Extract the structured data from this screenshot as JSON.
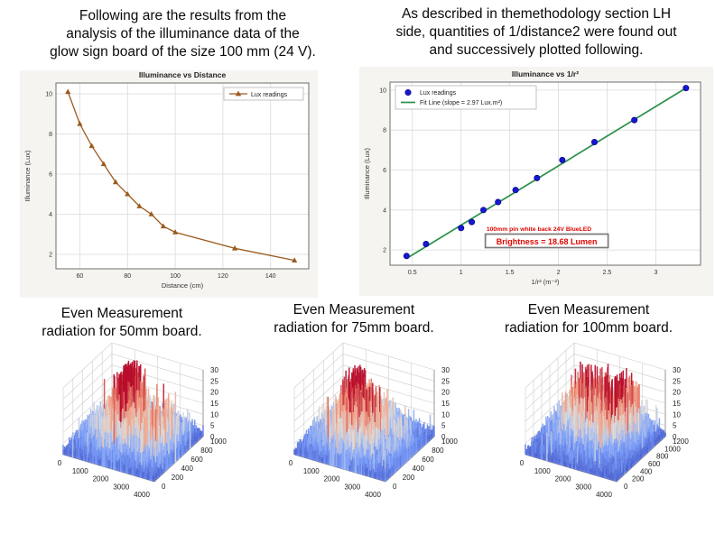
{
  "page": {
    "background": "#ffffff"
  },
  "captions": {
    "top_left": [
      "Following are the results from the",
      "analysis of the illuminance data of the",
      "glow sign board of the size 100 mm (24 V)."
    ],
    "top_right": [
      "As described in themethodology section LH",
      "side, quantities of 1/distance2 were found out",
      "and successively plotted following."
    ],
    "bottom_left": [
      "Even Measurement",
      "radiation for 50mm board."
    ],
    "bottom_middle": [
      "Even Measurement",
      "radiation for 75mm board."
    ],
    "bottom_right": [
      "Even Measurement",
      "radiation for 100mm board."
    ]
  },
  "chart_data": [
    {
      "id": "illuminance_vs_distance",
      "type": "line",
      "title": "Illuminance vs Distance",
      "xlabel": "Distance (cm)",
      "ylabel": "Illuminance (Lux)",
      "x": [
        55,
        60,
        65,
        70,
        75,
        80,
        85,
        90,
        95,
        100,
        125,
        150
      ],
      "y": [
        10.1,
        8.5,
        7.4,
        6.5,
        5.6,
        5.0,
        4.4,
        4.0,
        3.4,
        3.1,
        2.3,
        1.7
      ],
      "xticks": [
        60,
        80,
        100,
        120,
        140
      ],
      "yticks": [
        2,
        4,
        6,
        8,
        10
      ],
      "xlim": [
        50,
        156
      ],
      "ylim": [
        1.28,
        10.54
      ],
      "grid": true,
      "marker": "triangle",
      "series_color": "#9c5a1e",
      "legend": {
        "position": "top-right",
        "entries": [
          {
            "label": "Lux readings"
          }
        ]
      }
    },
    {
      "id": "illuminance_vs_inverse_r2",
      "type": "scatter",
      "title": "Illuminance vs 1/r²",
      "xlabel": "1/r² (m⁻²)",
      "ylabel": "Illuminance (Lux)",
      "x": [
        0.44,
        0.64,
        1.0,
        1.11,
        1.23,
        1.38,
        1.56,
        1.78,
        2.04,
        2.37,
        2.78,
        3.31
      ],
      "y": [
        1.7,
        2.3,
        3.1,
        3.4,
        4.0,
        4.4,
        5.0,
        5.6,
        6.5,
        7.4,
        8.5,
        10.1
      ],
      "xticks": [
        0.5,
        1.0,
        1.5,
        2.0,
        2.5,
        3.0
      ],
      "yticks": [
        2,
        4,
        6,
        8,
        10
      ],
      "xlim": [
        0.27,
        3.46
      ],
      "ylim": [
        1.24,
        10.4
      ],
      "grid": true,
      "point_color": "#1717d2",
      "point_edge": "#000082",
      "fit_line": {
        "label": "Fit Line (slope = 2.97 Lux.m²)",
        "slope": 2.97,
        "color": "#2a9148",
        "x_start": 0.44,
        "y_start": 1.58,
        "x_end": 3.31,
        "y_end": 10.1
      },
      "legend": {
        "position": "top-left",
        "entries": [
          {
            "label": "Lux readings"
          },
          {
            "label": "Fit Line (slope = 2.97 Lux.m²)"
          }
        ]
      },
      "annotation_color": "#e00600",
      "annotations": [
        {
          "text": "100mm pin white back 24V BlueLED",
          "x": 1.8,
          "y": 2.95,
          "boxed": false
        },
        {
          "text": "Brightness = 18.68 Lumen",
          "x": 1.88,
          "y": 2.3,
          "boxed": true
        }
      ]
    },
    {
      "id": "surface_50mm",
      "type": "surface3d",
      "caption": "Even Measurement radiation for 50mm board.",
      "xticks": [
        0,
        1000,
        2000,
        3000,
        4000
      ],
      "yticks": [
        0,
        200,
        400,
        600,
        800,
        1000
      ],
      "zticks": [
        0,
        5,
        10,
        15,
        20,
        25,
        30
      ],
      "xlim": [
        0,
        4000
      ],
      "ylim": [
        0,
        1000
      ],
      "zlim": [
        0,
        30
      ],
      "colormap": "coolwarm",
      "seed": 11,
      "peaks": [
        {
          "x": 1300,
          "y": 700,
          "sx": 350,
          "sy": 170,
          "amp": 26
        },
        {
          "x": 1200,
          "y": 450,
          "sx": 900,
          "sy": 280,
          "amp": 11
        },
        {
          "x": 2500,
          "y": 550,
          "sx": 1000,
          "sy": 300,
          "amp": 11
        },
        {
          "x": 3400,
          "y": 450,
          "sx": 450,
          "sy": 250,
          "amp": 9
        }
      ]
    },
    {
      "id": "surface_75mm",
      "type": "surface3d",
      "caption": "Even Measurement radiation for 75mm board.",
      "xticks": [
        0,
        1000,
        2000,
        3000,
        4000
      ],
      "yticks": [
        0,
        200,
        400,
        600,
        800,
        1000
      ],
      "zticks": [
        0,
        5,
        10,
        15,
        20,
        25,
        30
      ],
      "xlim": [
        0,
        4000
      ],
      "ylim": [
        0,
        1000
      ],
      "zlim": [
        0,
        30
      ],
      "colormap": "coolwarm",
      "seed": 23,
      "peaks": [
        {
          "x": 1350,
          "y": 650,
          "sx": 160,
          "sy": 110,
          "amp": 28
        },
        {
          "x": 1400,
          "y": 500,
          "sx": 1100,
          "sy": 330,
          "amp": 12
        },
        {
          "x": 2700,
          "y": 450,
          "sx": 950,
          "sy": 300,
          "amp": 10
        }
      ]
    },
    {
      "id": "surface_100mm",
      "type": "surface3d",
      "caption": "Even Measurement radiation for 100mm board.",
      "xticks": [
        0,
        1000,
        2000,
        3000,
        4000
      ],
      "yticks": [
        0,
        200,
        400,
        600,
        800,
        1000,
        1200
      ],
      "zticks": [
        0,
        5,
        10,
        15,
        20,
        25,
        30
      ],
      "xlim": [
        0,
        4000
      ],
      "ylim": [
        0,
        1200
      ],
      "zlim": [
        0,
        30
      ],
      "colormap": "coolwarm",
      "seed": 37,
      "peaks": [
        {
          "x": 1800,
          "y": 780,
          "sx": 1300,
          "sy": 400,
          "amp": 13
        },
        {
          "x": 2700,
          "y": 840,
          "sx": 450,
          "sy": 260,
          "amp": 16
        },
        {
          "x": 1200,
          "y": 840,
          "sx": 380,
          "sy": 240,
          "amp": 14
        }
      ]
    }
  ]
}
